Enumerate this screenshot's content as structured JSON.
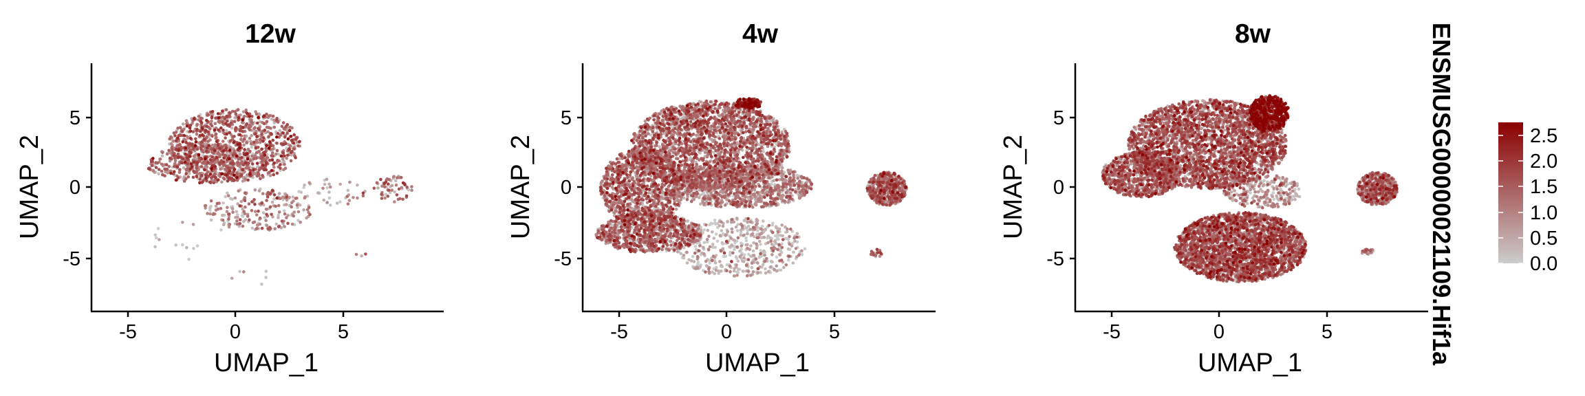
{
  "chart_data": {
    "type": "scatter",
    "feature": "ENSMUSG00000021109.Hif1a",
    "color_scale": {
      "low_color": "#cccccc",
      "high_color": "#8b0000",
      "min": 0.0,
      "max": 2.75,
      "ticks": [
        "0.0",
        "0.5",
        "1.0",
        "1.5",
        "2.0",
        "2.5"
      ]
    },
    "panels": [
      {
        "title": "12w",
        "xlabel": "UMAP_1",
        "ylabel": "UMAP_2",
        "xlim": [
          -6.5,
          9.5
        ],
        "ylim": [
          -8.6,
          9.2
        ],
        "xticks": [
          "-5",
          "0",
          "5"
        ],
        "yticks": [
          "-5",
          "0",
          "5"
        ],
        "clusters": [
          {
            "cx": 0.0,
            "cy": 3.3,
            "rx": 3.0,
            "ry": 2.6,
            "n": 1000,
            "mean": 1.3
          },
          {
            "cx": -1.2,
            "cy": 2.0,
            "rx": 2.8,
            "ry": 1.4,
            "n": 400,
            "mean": 1.2
          },
          {
            "cx": 1.0,
            "cy": -1.3,
            "rx": 2.5,
            "ry": 1.5,
            "n": 220,
            "mean": 0.9
          },
          {
            "cx": 4.5,
            "cy": 0.0,
            "rx": 1.6,
            "ry": 1.0,
            "n": 40,
            "mean": 0.4
          },
          {
            "cx": 7.2,
            "cy": 0.2,
            "rx": 0.9,
            "ry": 1.0,
            "n": 60,
            "mean": 1.0
          },
          {
            "cx": -2.0,
            "cy": -3.5,
            "rx": 1.8,
            "ry": 1.5,
            "n": 14,
            "mean": 0.3
          },
          {
            "cx": 1.0,
            "cy": -6.2,
            "rx": 1.4,
            "ry": 0.6,
            "n": 6,
            "mean": 0.1
          },
          {
            "cx": 5.7,
            "cy": -4.3,
            "rx": 0.3,
            "ry": 0.4,
            "n": 3,
            "mean": 1.4
          }
        ]
      },
      {
        "title": "4w",
        "xlabel": "UMAP_1",
        "ylabel": "UMAP_2",
        "xlim": [
          -6.5,
          9.5
        ],
        "ylim": [
          -8.6,
          9.2
        ],
        "xticks": [
          "-5",
          "0",
          "5"
        ],
        "yticks": [
          "-5",
          "0",
          "5"
        ],
        "clusters": [
          {
            "cx": -0.7,
            "cy": 3.3,
            "rx": 3.6,
            "ry": 3.2,
            "n": 2600,
            "mean": 1.2
          },
          {
            "cx": -3.8,
            "cy": 0.3,
            "rx": 1.9,
            "ry": 2.8,
            "n": 1200,
            "mean": 1.2
          },
          {
            "cx": 0.7,
            "cy": 0.4,
            "rx": 3.2,
            "ry": 1.6,
            "n": 1100,
            "mean": 0.9
          },
          {
            "cx": -3.5,
            "cy": -3.0,
            "rx": 2.4,
            "ry": 1.4,
            "n": 900,
            "mean": 1.2
          },
          {
            "cx": 0.6,
            "cy": -4.0,
            "rx": 3.0,
            "ry": 2.1,
            "n": 500,
            "mean": 0.3
          },
          {
            "cx": 7.3,
            "cy": 0.2,
            "rx": 0.9,
            "ry": 1.2,
            "n": 500,
            "mean": 1.3
          },
          {
            "cx": 1.0,
            "cy": 6.3,
            "rx": 0.6,
            "ry": 0.4,
            "n": 150,
            "mean": 2.3
          },
          {
            "cx": 6.8,
            "cy": -4.4,
            "rx": 0.3,
            "ry": 0.3,
            "n": 20,
            "mean": 1.2
          }
        ]
      },
      {
        "title": "8w",
        "xlabel": "UMAP_1",
        "ylabel": "UMAP_2",
        "xlim": [
          -6.5,
          9.5
        ],
        "ylim": [
          -8.6,
          9.2
        ],
        "xticks": [
          "-5",
          "0",
          "5"
        ],
        "yticks": [
          "-5",
          "0",
          "5"
        ],
        "clusters": [
          {
            "cx": -0.5,
            "cy": 3.4,
            "rx": 3.6,
            "ry": 3.2,
            "n": 3000,
            "mean": 1.4
          },
          {
            "cx": -3.5,
            "cy": 1.2,
            "rx": 1.8,
            "ry": 1.6,
            "n": 900,
            "mean": 1.3
          },
          {
            "cx": 1.0,
            "cy": -4.0,
            "rx": 3.0,
            "ry": 2.5,
            "n": 2800,
            "mean": 1.4
          },
          {
            "cx": 2.3,
            "cy": 5.6,
            "rx": 0.9,
            "ry": 1.3,
            "n": 600,
            "mean": 2.4
          },
          {
            "cx": 2.0,
            "cy": 0.0,
            "rx": 1.8,
            "ry": 1.2,
            "n": 300,
            "mean": 0.7
          },
          {
            "cx": 7.2,
            "cy": 0.2,
            "rx": 0.9,
            "ry": 1.2,
            "n": 500,
            "mean": 1.3
          },
          {
            "cx": 6.8,
            "cy": -4.4,
            "rx": 0.3,
            "ry": 0.3,
            "n": 20,
            "mean": 1.2
          }
        ]
      }
    ]
  }
}
